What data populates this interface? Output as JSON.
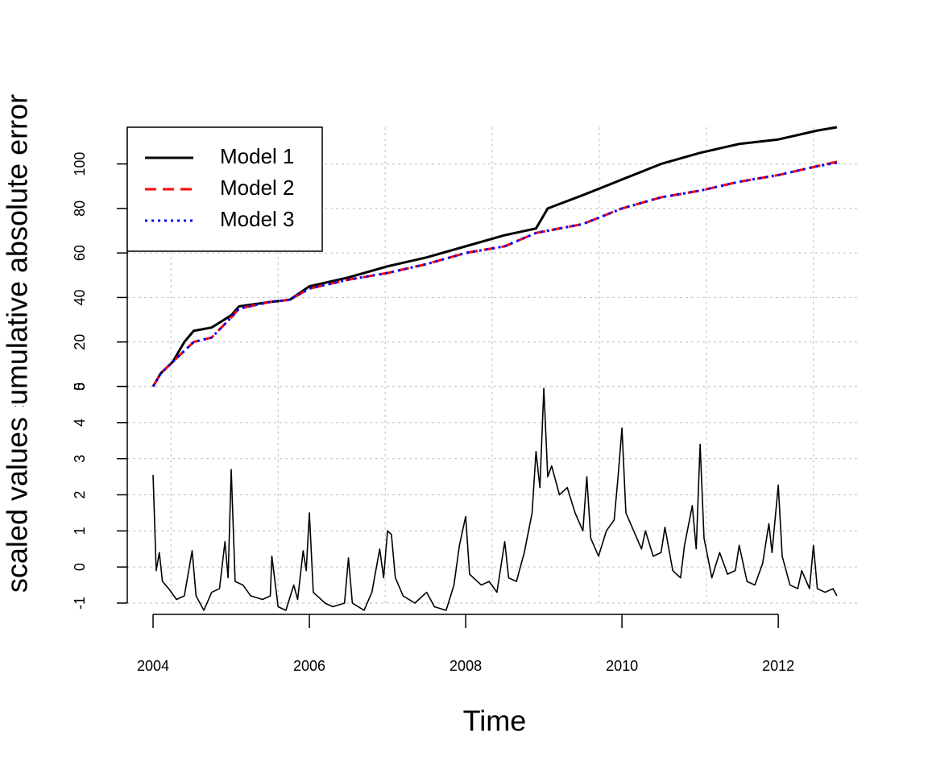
{
  "chart_data": [
    {
      "type": "line",
      "ylabel": "cumulative absolute error",
      "x": [
        2004.0,
        2004.1,
        2004.25,
        2004.4,
        2004.52,
        2004.75,
        2005.0,
        2005.1,
        2005.5,
        2005.75,
        2006.0,
        2006.5,
        2007.0,
        2007.5,
        2008.0,
        2008.5,
        2008.9,
        2009.05,
        2009.5,
        2010.0,
        2010.5,
        2011.0,
        2011.5,
        2012.0,
        2012.5,
        2012.75
      ],
      "series": [
        {
          "name": "Model 1",
          "color": "#000000",
          "line_style": "solid",
          "values": [
            0,
            6,
            11,
            20,
            25,
            26.5,
            32,
            36,
            38,
            39,
            45,
            49,
            54,
            58,
            63,
            68,
            71,
            80,
            86,
            93,
            100,
            105,
            109,
            111,
            115,
            116.5
          ]
        },
        {
          "name": "Model 2",
          "color": "#ff0000",
          "line_style": "dashed",
          "values": [
            0,
            6,
            11,
            16,
            20,
            22,
            31,
            35,
            38,
            39,
            44,
            48,
            51,
            55,
            60,
            63,
            69,
            70,
            73,
            80,
            85,
            88,
            92,
            95,
            99,
            101
          ]
        },
        {
          "name": "Model 3",
          "color": "#0000ff",
          "line_style": "dotted",
          "values": [
            0,
            6,
            11,
            16,
            20,
            22,
            31,
            35,
            38,
            39,
            44,
            48,
            51,
            55,
            60,
            63,
            69,
            70,
            73,
            80,
            85,
            88,
            92,
            95,
            99,
            100.5
          ]
        }
      ],
      "ylim": [
        0,
        116.5
      ],
      "yticks": [
        0,
        20,
        40,
        60,
        80,
        100
      ],
      "grid": true,
      "legend": "topleft"
    },
    {
      "type": "line",
      "xlabel": "Time",
      "ylabel": "scaled values",
      "x": [
        2004.0,
        2004.04,
        2004.08,
        2004.12,
        2004.2,
        2004.3,
        2004.4,
        2004.5,
        2004.55,
        2004.65,
        2004.75,
        2004.85,
        2004.92,
        2004.96,
        2005.0,
        2005.05,
        2005.15,
        2005.25,
        2005.4,
        2005.5,
        2005.52,
        2005.6,
        2005.7,
        2005.8,
        2005.85,
        2005.92,
        2005.96,
        2006.0,
        2006.05,
        2006.2,
        2006.3,
        2006.45,
        2006.5,
        2006.55,
        2006.7,
        2006.8,
        2006.9,
        2006.95,
        2007.0,
        2007.05,
        2007.1,
        2007.2,
        2007.35,
        2007.5,
        2007.6,
        2007.75,
        2007.85,
        2007.92,
        2008.0,
        2008.05,
        2008.2,
        2008.3,
        2008.4,
        2008.5,
        2008.55,
        2008.65,
        2008.75,
        2008.85,
        2008.9,
        2008.95,
        2009.0,
        2009.05,
        2009.1,
        2009.2,
        2009.3,
        2009.4,
        2009.5,
        2009.55,
        2009.6,
        2009.7,
        2009.8,
        2009.9,
        2009.95,
        2010.0,
        2010.05,
        2010.15,
        2010.25,
        2010.3,
        2010.4,
        2010.5,
        2010.55,
        2010.65,
        2010.75,
        2010.8,
        2010.9,
        2010.95,
        2011.0,
        2011.05,
        2011.15,
        2011.25,
        2011.35,
        2011.45,
        2011.5,
        2011.6,
        2011.7,
        2011.8,
        2011.88,
        2011.92,
        2012.0,
        2012.05,
        2012.15,
        2012.25,
        2012.3,
        2012.4,
        2012.45,
        2012.5,
        2012.6,
        2012.7,
        2012.75
      ],
      "values": [
        2.55,
        -0.1,
        0.4,
        -0.4,
        -0.6,
        -0.9,
        -0.8,
        0.45,
        -0.8,
        -1.2,
        -0.7,
        -0.6,
        0.7,
        -0.3,
        2.7,
        -0.4,
        -0.5,
        -0.8,
        -0.9,
        -0.8,
        0.3,
        -1.1,
        -1.2,
        -0.5,
        -0.9,
        0.45,
        -0.1,
        1.5,
        -0.7,
        -1.0,
        -1.1,
        -1.0,
        0.25,
        -1.0,
        -1.2,
        -0.7,
        0.5,
        -0.3,
        1.0,
        0.9,
        -0.3,
        -0.8,
        -1.0,
        -0.7,
        -1.1,
        -1.2,
        -0.5,
        0.6,
        1.4,
        -0.2,
        -0.5,
        -0.4,
        -0.7,
        0.7,
        -0.3,
        -0.4,
        0.4,
        1.5,
        3.2,
        2.2,
        4.95,
        2.5,
        2.8,
        2.0,
        2.2,
        1.5,
        1.0,
        2.5,
        0.8,
        0.3,
        1.0,
        1.3,
        2.5,
        3.85,
        1.5,
        1.0,
        0.5,
        1.0,
        0.3,
        0.4,
        1.1,
        -0.1,
        -0.3,
        0.6,
        1.7,
        0.5,
        3.4,
        0.8,
        -0.3,
        0.4,
        -0.2,
        -0.1,
        0.6,
        -0.4,
        -0.5,
        0.1,
        1.2,
        0.4,
        2.27,
        0.3,
        -0.5,
        -0.6,
        -0.1,
        -0.6,
        0.6,
        -0.6,
        -0.7,
        -0.6,
        -0.8
      ],
      "color": "#000000",
      "xlim": [
        2003.67,
        2013.05
      ],
      "xticks": [
        2004,
        2006,
        2008,
        2010,
        2012
      ],
      "xgrid": [
        2004.23,
        2005.6,
        2006.97,
        2008.34,
        2009.71,
        2011.08,
        2012.45
      ],
      "ylim": [
        -1,
        5
      ],
      "yticks": [
        -1,
        0,
        1,
        2,
        3,
        4,
        5
      ],
      "grid": true
    }
  ]
}
